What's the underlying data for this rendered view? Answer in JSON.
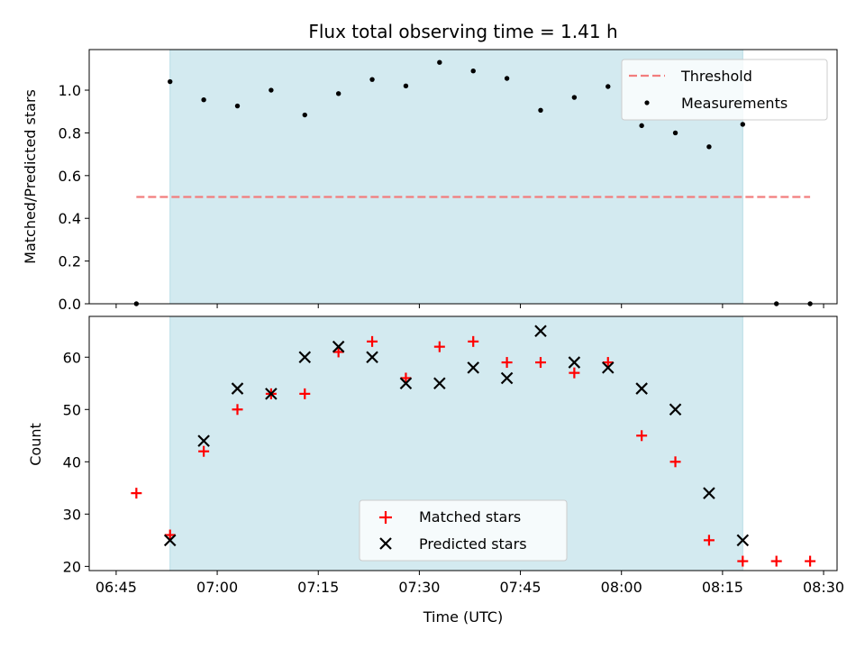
{
  "chart_data": [
    {
      "type": "scatter",
      "title": "Flux total observing time = 1.41 h",
      "xlabel": "",
      "ylabel": "Matched/Predicted stars",
      "ylim": [
        0,
        1.19
      ],
      "yticks": [
        0.0,
        0.2,
        0.4,
        0.6,
        0.8,
        1.0
      ],
      "ytick_labels": [
        "0.0",
        "0.2",
        "0.4",
        "0.6",
        "0.8",
        "1.0"
      ],
      "xlim": [
        "06:41",
        "08:32"
      ],
      "xticks": [
        "06:45",
        "07:00",
        "07:15",
        "07:30",
        "07:45",
        "08:00",
        "08:15",
        "08:30"
      ],
      "x_tick_labels_shown": false,
      "shaded_interval": [
        "06:53",
        "08:18"
      ],
      "shade_color": "#d3eaf0",
      "legend_position": "top-right",
      "threshold": {
        "name": "Threshold",
        "value": 0.5,
        "x_range": [
          "06:48",
          "08:28"
        ],
        "color": "#f27d7d",
        "style": "dashed"
      },
      "series": [
        {
          "name": "Measurements",
          "color": "#000000",
          "marker": "dot",
          "x": [
            "06:48",
            "06:53",
            "06:58",
            "07:03",
            "07:08",
            "07:13",
            "07:18",
            "07:23",
            "07:28",
            "07:33",
            "07:38",
            "07:43",
            "07:48",
            "07:53",
            "07:58",
            "08:03",
            "08:08",
            "08:13",
            "08:18",
            "08:23",
            "08:28"
          ],
          "y": [
            0.0,
            1.04,
            0.955,
            0.926,
            1.0,
            0.884,
            0.984,
            1.05,
            1.02,
            1.13,
            1.09,
            1.055,
            0.906,
            0.966,
            1.017,
            0.834,
            0.8,
            0.735,
            0.84,
            0.0,
            0.0
          ]
        }
      ]
    },
    {
      "type": "scatter",
      "title": "",
      "xlabel": "Time (UTC)",
      "ylabel": "Count",
      "ylim": [
        19.2,
        67.8
      ],
      "yticks": [
        20,
        30,
        40,
        50,
        60
      ],
      "ytick_labels": [
        "20",
        "30",
        "40",
        "50",
        "60"
      ],
      "xlim": [
        "06:41",
        "08:32"
      ],
      "xticks": [
        "06:45",
        "07:00",
        "07:15",
        "07:30",
        "07:45",
        "08:00",
        "08:15",
        "08:30"
      ],
      "xtick_labels": [
        "06:45",
        "07:00",
        "07:15",
        "07:30",
        "07:45",
        "08:00",
        "08:15",
        "08:30"
      ],
      "shaded_interval": [
        "06:53",
        "08:18"
      ],
      "shade_color": "#d3eaf0",
      "legend_position": "bottom-center",
      "series": [
        {
          "name": "Matched stars",
          "color": "#ff0000",
          "marker": "plus",
          "x": [
            "06:48",
            "06:53",
            "06:58",
            "07:03",
            "07:08",
            "07:13",
            "07:18",
            "07:23",
            "07:28",
            "07:33",
            "07:38",
            "07:43",
            "07:48",
            "07:53",
            "07:58",
            "08:03",
            "08:08",
            "08:13",
            "08:18",
            "08:23",
            "08:28"
          ],
          "y": [
            34,
            26,
            42,
            50,
            53,
            53,
            61,
            63,
            56,
            62,
            63,
            59,
            59,
            57,
            59,
            45,
            40,
            25,
            21,
            21,
            21
          ]
        },
        {
          "name": "Predicted stars",
          "color": "#000000",
          "marker": "x",
          "x": [
            "06:53",
            "06:58",
            "07:03",
            "07:08",
            "07:13",
            "07:18",
            "07:23",
            "07:28",
            "07:33",
            "07:38",
            "07:43",
            "07:48",
            "07:53",
            "07:58",
            "08:03",
            "08:08",
            "08:13",
            "08:18"
          ],
          "y": [
            25,
            44,
            54,
            53,
            60,
            62,
            60,
            55,
            55,
            58,
            56,
            65,
            59,
            58,
            54,
            50,
            34,
            25
          ]
        }
      ]
    }
  ]
}
